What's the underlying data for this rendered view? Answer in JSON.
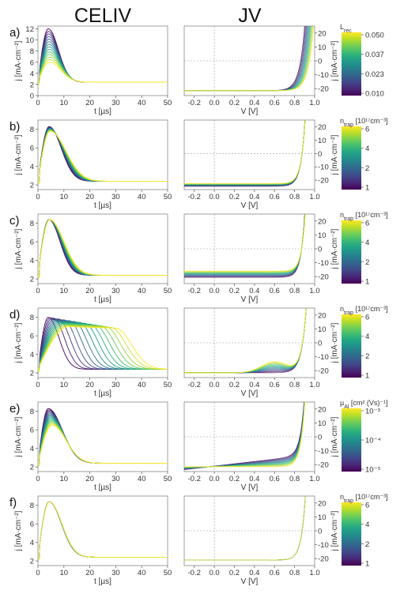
{
  "columns": {
    "left": "CELIV",
    "right": "JV"
  },
  "colormap": [
    "#440154",
    "#482475",
    "#414487",
    "#355f8d",
    "#2a788e",
    "#21918c",
    "#22a884",
    "#44bf70",
    "#7ad151",
    "#bddf26",
    "#fde725"
  ],
  "chart_data": [
    {
      "panel": "a)",
      "celiv": {
        "type": "line",
        "xlabel": "t [µs]",
        "ylabel": "j [mA·cm⁻²]",
        "xlim": [
          0,
          50
        ],
        "ylim": [
          0,
          12.5
        ],
        "xticks": [
          0,
          10,
          20,
          30,
          40,
          50
        ],
        "yticks": [
          0,
          2,
          4,
          6,
          8,
          10,
          12
        ],
        "n_curves": 14,
        "baseline": 2.4,
        "peak_t": [
          4,
          4.5
        ],
        "peak_j": [
          12.0,
          6.0
        ],
        "tail_tau": [
          3,
          3
        ],
        "width": [
          2.5,
          3.2
        ]
      },
      "jv": {
        "type": "line",
        "xlabel": "V [V]",
        "ylabel": "j [mA·cm⁻²]",
        "xlim": [
          -0.3,
          1.0
        ],
        "ylim": [
          -25,
          25
        ],
        "xticks": [
          -0.2,
          0.0,
          0.2,
          0.4,
          0.6,
          0.8,
          1.0
        ],
        "yticks": [
          -20,
          -10,
          0,
          10,
          20
        ],
        "n_curves": 14,
        "jsc": [
          -21.5,
          -21.5
        ],
        "voc": [
          0.86,
          0.95
        ],
        "n_id": [
          2.0,
          2.0
        ],
        "fw": [
          0,
          0
        ],
        "d": [
          0,
          0
        ]
      },
      "colorbar": {
        "label": "L_rec",
        "ticks": [
          "0.050",
          "0.037",
          "0.023",
          "0.010"
        ]
      }
    },
    {
      "panel": "b)",
      "celiv": {
        "type": "line",
        "xlabel": "t [µs]",
        "ylabel": "j [mA·cm⁻²]",
        "xlim": [
          0,
          50
        ],
        "ylim": [
          1.5,
          9
        ],
        "xticks": [
          0,
          10,
          20,
          30,
          40,
          50
        ],
        "yticks": [
          2,
          4,
          6,
          8
        ],
        "n_curves": 14,
        "baseline": 2.4,
        "peak_t": [
          4.3,
          4.7
        ],
        "peak_j": [
          8.3,
          7.8
        ],
        "tail_tau": [
          4.0,
          5.6
        ],
        "width": [
          2.6,
          3.0
        ]
      },
      "jv": {
        "type": "line",
        "xlabel": "V [V]",
        "ylabel": "j [mA·cm⁻²]",
        "xlim": [
          -0.3,
          1.0
        ],
        "ylim": [
          -27,
          25
        ],
        "xticks": [
          -0.2,
          0.0,
          0.2,
          0.4,
          0.6,
          0.8,
          1.0
        ],
        "yticks": [
          -20,
          -10,
          0,
          10,
          20
        ],
        "n_curves": 14,
        "jsc": [
          -24.5,
          -22.5
        ],
        "voc": [
          0.875,
          0.875
        ],
        "n_id": [
          1.6,
          1.6
        ],
        "fw": [
          0,
          0
        ],
        "d": [
          0,
          0
        ]
      },
      "colorbar": {
        "label": "n_trap [10¹⁷cm⁻³]",
        "ticks": [
          "6",
          "4",
          "2",
          "1"
        ]
      }
    },
    {
      "panel": "c)",
      "celiv": {
        "type": "line",
        "xlabel": "t [µs]",
        "ylabel": "j [mA·cm⁻²]",
        "xlim": [
          0,
          50
        ],
        "ylim": [
          1.5,
          9
        ],
        "xticks": [
          0,
          10,
          20,
          30,
          40,
          50
        ],
        "yticks": [
          2,
          4,
          6,
          8
        ],
        "n_curves": 14,
        "baseline": 2.4,
        "peak_t": [
          4.2,
          4.5
        ],
        "peak_j": [
          8.4,
          8.4
        ],
        "tail_tau": [
          3.5,
          5.0
        ],
        "width": [
          2.6,
          2.8
        ]
      },
      "jv": {
        "type": "line",
        "xlabel": "V [V]",
        "ylabel": "j [mA·cm⁻²]",
        "xlim": [
          -0.3,
          1.0
        ],
        "ylim": [
          -25,
          25
        ],
        "xticks": [
          -0.2,
          0.0,
          0.2,
          0.4,
          0.6,
          0.8,
          1.0
        ],
        "yticks": [
          -20,
          -10,
          0,
          10,
          20
        ],
        "n_curves": 14,
        "jsc": [
          -20.5,
          -16.0
        ],
        "voc": [
          0.87,
          0.87
        ],
        "n_id": [
          1.5,
          1.5
        ],
        "fw": [
          0,
          0
        ],
        "d": [
          0,
          0
        ]
      },
      "colorbar": {
        "label": "n_trap [10¹⁷cm⁻³]",
        "ticks": [
          "6",
          "4",
          "2",
          "1"
        ]
      }
    },
    {
      "panel": "d)",
      "celiv": {
        "type": "line",
        "xlabel": "t [µs]",
        "ylabel": "j [mA·cm⁻²]",
        "xlim": [
          0,
          50
        ],
        "ylim": [
          1.5,
          9
        ],
        "xticks": [
          0,
          10,
          20,
          30,
          40,
          50
        ],
        "yticks": [
          2,
          4,
          6,
          8
        ],
        "n_curves": 14,
        "baseline": 2.4,
        "peak_t": [
          4,
          12
        ],
        "peak_j": [
          8.0,
          7.0
        ],
        "tail_tau": [
          3.3,
          4.5
        ],
        "width": [
          2.5,
          4
        ],
        "plateau": [
          0,
          18
        ]
      },
      "jv": {
        "type": "line",
        "xlabel": "V [V]",
        "ylabel": "j [mA·cm⁻²]",
        "xlim": [
          -0.3,
          1.0
        ],
        "ylim": [
          -25,
          25
        ],
        "xticks": [
          -0.2,
          0.0,
          0.2,
          0.4,
          0.6,
          0.8,
          1.0
        ],
        "yticks": [
          -20,
          -10,
          0,
          10,
          20
        ],
        "n_curves": 14,
        "jsc": [
          -21.5,
          -21.5
        ],
        "voc": [
          0.88,
          0.88
        ],
        "n_id": [
          1.8,
          1.8
        ],
        "fw": [
          0,
          8
        ],
        "d": [
          0,
          15
        ]
      },
      "colorbar": {
        "label": "n_trap [10¹⁷cm⁻³]",
        "ticks": [
          "6",
          "4",
          "2",
          "1"
        ]
      }
    },
    {
      "panel": "e)",
      "celiv": {
        "type": "line",
        "xlabel": "t [µs]",
        "ylabel": "j [mA·cm⁻²]",
        "xlim": [
          0,
          50
        ],
        "ylim": [
          1.5,
          9
        ],
        "xticks": [
          0,
          10,
          20,
          30,
          40,
          50
        ],
        "yticks": [
          2,
          4,
          6,
          8
        ],
        "n_curves": 14,
        "baseline": 2.4,
        "peak_t": [
          4.0,
          5.5
        ],
        "peak_j": [
          8.3,
          6.5
        ],
        "tail_tau": [
          5.0,
          4.0
        ],
        "width": [
          2.6,
          3.5
        ]
      },
      "jv": {
        "type": "line",
        "xlabel": "V [V]",
        "ylabel": "j [mA·cm⁻²]",
        "xlim": [
          -0.3,
          1.0
        ],
        "ylim": [
          -25,
          25
        ],
        "xticks": [
          -0.2,
          0.0,
          0.2,
          0.4,
          0.6,
          0.8,
          1.0
        ],
        "yticks": [
          -20,
          -10,
          0,
          10,
          20
        ],
        "n_curves": 14,
        "jsc": [
          -21.5,
          -21.5
        ],
        "voc": [
          0.87,
          0.87
        ],
        "n_id": [
          1.6,
          1.6
        ],
        "fw": [
          0,
          0
        ],
        "d": [
          0,
          0
        ],
        "tilt": [
          7,
          0
        ]
      },
      "colorbar": {
        "label": "µ_Al [cm² (Vs)⁻¹]",
        "ticks": [
          "10⁻³",
          "10⁻⁴",
          "10⁻⁵"
        ]
      }
    },
    {
      "panel": "f)",
      "celiv": {
        "type": "line",
        "xlabel": "t [µs]",
        "ylabel": "j [mA·cm⁻²]",
        "xlim": [
          0,
          50
        ],
        "ylim": [
          1.5,
          9
        ],
        "xticks": [
          0,
          10,
          20,
          30,
          40,
          50
        ],
        "yticks": [
          2,
          4,
          6,
          8
        ],
        "n_curves": 6,
        "baseline": 2.4,
        "peak_t": [
          4.3,
          4.4
        ],
        "peak_j": [
          8.4,
          8.4
        ],
        "tail_tau": [
          4.0,
          4.1
        ],
        "width": [
          2.7,
          2.7
        ]
      },
      "jv": {
        "type": "line",
        "xlabel": "V [V]",
        "ylabel": "j [mA·cm⁻²]",
        "xlim": [
          -0.3,
          1.0
        ],
        "ylim": [
          -25,
          25
        ],
        "xticks": [
          -0.2,
          0.0,
          0.2,
          0.4,
          0.6,
          0.8,
          1.0
        ],
        "yticks": [
          -20,
          -10,
          0,
          10,
          20
        ],
        "n_curves": 6,
        "jsc": [
          -21.0,
          -21.0
        ],
        "voc": [
          0.875,
          0.875
        ],
        "n_id": [
          1.6,
          1.6
        ],
        "fw": [
          0,
          0
        ],
        "d": [
          0,
          0
        ]
      },
      "colorbar": {
        "label": "n_trap [10¹⁷cm⁻³]",
        "ticks": [
          "6",
          "4",
          "2",
          "1"
        ]
      }
    }
  ]
}
